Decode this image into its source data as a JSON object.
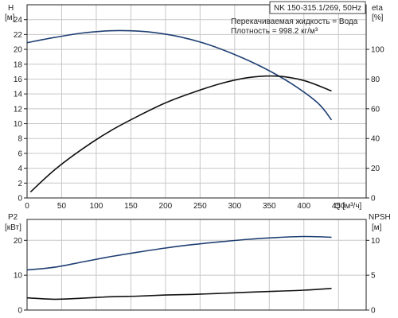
{
  "chart_data": [
    {
      "type": "line",
      "title": "NK 150-315.1/269, 50Hz",
      "annotations": [
        "Перекачиваемая жидкость = Вода",
        "Плотность = 998.2 кг/м³"
      ],
      "xlabel": "Q [м³/ч]",
      "x_ticks": [
        0,
        50,
        100,
        150,
        200,
        250,
        300,
        350,
        400,
        450
      ],
      "xlim": [
        0,
        490
      ],
      "left_axis": {
        "label_top": "H",
        "label_unit": "[м]",
        "ylim": [
          0,
          26
        ],
        "ticks": [
          0,
          2,
          4,
          6,
          8,
          10,
          12,
          14,
          16,
          18,
          20,
          22,
          24
        ]
      },
      "right_axis": {
        "label_top": "eta",
        "label_unit": "[%]",
        "ylim": [
          0,
          130
        ],
        "ticks": [
          0,
          20,
          40,
          60,
          80,
          100
        ]
      },
      "grid": true,
      "series": [
        {
          "axis": "left",
          "color": "#1f3f73",
          "x": [
            0,
            40,
            80,
            120,
            150,
            180,
            220,
            260,
            300,
            340,
            380,
            420,
            440
          ],
          "y": [
            20.9,
            21.6,
            22.2,
            22.5,
            22.5,
            22.3,
            21.7,
            20.7,
            19.3,
            17.6,
            15.5,
            12.8,
            10.5
          ]
        },
        {
          "axis": "right",
          "color": "#111111",
          "x": [
            5,
            40,
            80,
            120,
            160,
            200,
            240,
            280,
            320,
            360,
            400,
            440
          ],
          "y": [
            4,
            19,
            33,
            45,
            55,
            64,
            71,
            77,
            81,
            82,
            79,
            72
          ]
        }
      ]
    },
    {
      "type": "line",
      "xlim": [
        0,
        490
      ],
      "left_axis": {
        "label_top": "P2",
        "label_unit": "[кВт]",
        "ylim": [
          0,
          26
        ],
        "ticks": [
          0,
          10,
          20
        ]
      },
      "right_axis": {
        "label_top": "NPSH",
        "label_unit": "[м]",
        "ylim": [
          0,
          13
        ],
        "ticks": [
          0,
          5,
          10
        ]
      },
      "grid": true,
      "series": [
        {
          "axis": "left",
          "color": "#1f3f73",
          "x": [
            0,
            40,
            80,
            120,
            160,
            200,
            240,
            280,
            320,
            360,
            400,
            440
          ],
          "y": [
            11.5,
            12.3,
            13.8,
            15.3,
            16.6,
            17.8,
            18.8,
            19.6,
            20.3,
            20.8,
            21.1,
            20.9
          ]
        },
        {
          "axis": "left",
          "color": "#111111",
          "x": [
            0,
            40,
            80,
            120,
            160,
            200,
            240,
            280,
            320,
            360,
            400,
            440
          ],
          "y": [
            3.5,
            3.1,
            3.4,
            3.8,
            4.0,
            4.3,
            4.5,
            4.8,
            5.1,
            5.4,
            5.7,
            6.2
          ]
        }
      ]
    }
  ]
}
